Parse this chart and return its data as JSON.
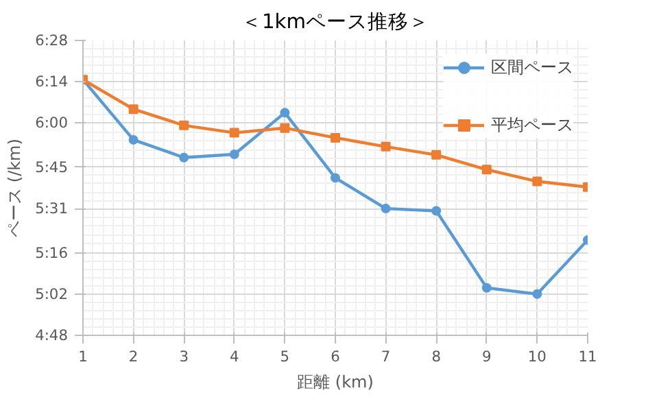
{
  "chart_data": {
    "type": "line",
    "title": "＜1kmペース推移＞",
    "xlabel": "距離 (km)",
    "ylabel": "ペース (/km)",
    "x": [
      1,
      2,
      3,
      4,
      5,
      6,
      7,
      8,
      9,
      10,
      11
    ],
    "series": [
      {
        "name": "区間ペース",
        "color": "#5b9bd5",
        "marker": "circle",
        "values": [
          374.7,
          354.3,
          348.3,
          349.4,
          363.5,
          341.4,
          331.0,
          330.2,
          304.1,
          302.0,
          320.3
        ]
      },
      {
        "name": "平均ペース",
        "color": "#ed7d31",
        "marker": "square",
        "values": [
          374.7,
          364.7,
          359.2,
          356.7,
          358.3,
          355.0,
          352.0,
          349.2,
          344.2,
          340.2,
          338.3
        ]
      }
    ],
    "xlim": [
      1,
      11
    ],
    "xticks": [
      1,
      2,
      3,
      4,
      5,
      6,
      7,
      8,
      9,
      10,
      11
    ],
    "ylim": [
      288,
      388
    ],
    "yticks": [
      {
        "value": 288,
        "label": "4:48"
      },
      {
        "value": 302,
        "label": "5:02"
      },
      {
        "value": 316,
        "label": "5:16"
      },
      {
        "value": 331,
        "label": "5:31"
      },
      {
        "value": 345,
        "label": "5:45"
      },
      {
        "value": 360,
        "label": "6:00"
      },
      {
        "value": 374,
        "label": "6:14"
      },
      {
        "value": 388,
        "label": "6:28"
      }
    ],
    "grid": true,
    "legend": "top right",
    "line_style": "solid"
  }
}
